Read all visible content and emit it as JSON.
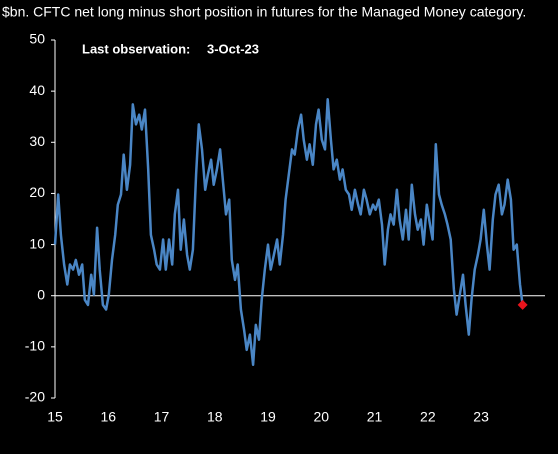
{
  "chart_data": {
    "type": "line",
    "title": "$bn. CFTC net long minus short position in futures for the Managed Money category.",
    "annotation": {
      "label": "Last observation:",
      "value": "3-Oct-23"
    },
    "x": [
      15.0,
      15.06,
      15.11,
      15.17,
      15.23,
      15.28,
      15.34,
      15.39,
      15.45,
      15.51,
      15.56,
      15.62,
      15.68,
      15.73,
      15.79,
      15.84,
      15.9,
      15.96,
      16.01,
      16.07,
      16.13,
      16.18,
      16.24,
      16.29,
      16.35,
      16.41,
      16.46,
      16.52,
      16.58,
      16.63,
      16.69,
      16.75,
      16.8,
      16.86,
      16.91,
      16.97,
      17.03,
      17.08,
      17.14,
      17.2,
      17.25,
      17.31,
      17.36,
      17.42,
      17.48,
      17.53,
      17.59,
      17.65,
      17.7,
      17.76,
      17.82,
      17.87,
      17.93,
      17.98,
      18.04,
      18.1,
      18.15,
      18.21,
      18.27,
      18.32,
      18.38,
      18.43,
      18.49,
      18.55,
      18.6,
      18.66,
      18.72,
      18.77,
      18.83,
      18.88,
      18.94,
      19.0,
      19.05,
      19.11,
      19.17,
      19.22,
      19.28,
      19.33,
      19.39,
      19.45,
      19.5,
      19.56,
      19.62,
      19.67,
      19.73,
      19.78,
      19.84,
      19.9,
      19.95,
      20.01,
      20.07,
      20.12,
      20.18,
      20.23,
      20.29,
      20.35,
      20.4,
      20.46,
      20.52,
      20.57,
      20.63,
      20.69,
      20.74,
      20.8,
      20.85,
      20.91,
      20.97,
      21.02,
      21.08,
      21.14,
      21.19,
      21.25,
      21.3,
      21.36,
      21.42,
      21.47,
      21.53,
      21.59,
      21.64,
      21.7,
      21.76,
      21.81,
      21.87,
      21.92,
      21.98,
      22.04,
      22.09,
      22.15,
      22.21,
      22.26,
      22.32,
      22.37,
      22.43,
      22.49,
      22.54,
      22.6,
      22.66,
      22.71,
      22.77,
      22.82,
      22.88,
      22.94,
      22.99,
      23.05,
      23.11,
      23.16,
      23.22,
      23.27,
      23.33,
      23.39,
      23.44,
      23.5,
      23.56,
      23.61,
      23.67,
      23.73,
      23.78
    ],
    "series": [
      {
        "color": "#4a86c5",
        "last_marker": {
          "shape": "diamond",
          "color": "#e8141c"
        },
        "values": [
          10.0,
          19.8,
          11.9,
          6.1,
          2.2,
          6.1,
          5.1,
          7.0,
          4.1,
          6.1,
          -0.8,
          -1.8,
          4.1,
          0.2,
          13.3,
          5.1,
          -1.8,
          -2.7,
          0.2,
          7.0,
          11.9,
          17.8,
          19.8,
          27.6,
          20.7,
          25.6,
          37.4,
          33.5,
          35.4,
          32.5,
          36.4,
          24.7,
          11.9,
          9.0,
          6.1,
          5.1,
          11.0,
          5.1,
          11.0,
          6.1,
          15.9,
          20.7,
          9.0,
          14.9,
          8.0,
          5.1,
          9.0,
          23.7,
          33.5,
          28.6,
          20.7,
          23.7,
          26.6,
          21.7,
          24.7,
          28.6,
          22.7,
          15.9,
          18.8,
          7.0,
          3.1,
          6.1,
          -2.7,
          -6.7,
          -10.6,
          -7.6,
          -13.5,
          -5.7,
          -8.6,
          -0.8,
          5.1,
          10.0,
          5.1,
          8.0,
          11.0,
          6.1,
          11.9,
          18.8,
          23.7,
          28.6,
          27.6,
          32.5,
          35.4,
          30.5,
          26.6,
          29.6,
          25.6,
          33.5,
          36.4,
          30.5,
          28.6,
          38.4,
          30.5,
          24.7,
          26.6,
          22.7,
          24.7,
          20.7,
          19.8,
          16.8,
          20.7,
          17.8,
          15.9,
          20.7,
          18.8,
          15.9,
          17.8,
          16.8,
          18.8,
          13.9,
          6.1,
          12.9,
          15.9,
          13.9,
          20.7,
          14.9,
          11.0,
          16.8,
          11.0,
          21.7,
          15.9,
          12.9,
          14.9,
          10.0,
          17.8,
          13.9,
          11.0,
          29.6,
          19.8,
          17.8,
          15.9,
          13.9,
          11.0,
          1.2,
          -3.7,
          0.2,
          4.1,
          -1.8,
          -7.6,
          -0.8,
          5.1,
          8.0,
          11.0,
          16.8,
          10.0,
          5.1,
          14.9,
          19.8,
          21.7,
          15.9,
          17.8,
          22.7,
          18.8,
          9.0,
          10.0,
          2.2,
          -1.8
        ]
      }
    ],
    "xlim": [
      15,
      24.2
    ],
    "xticks": [
      15,
      16,
      17,
      18,
      19,
      20,
      21,
      22,
      23
    ],
    "ylim": [
      -20,
      50
    ],
    "yticks": [
      -20,
      -10,
      0,
      10,
      20,
      30,
      40,
      50
    ]
  }
}
